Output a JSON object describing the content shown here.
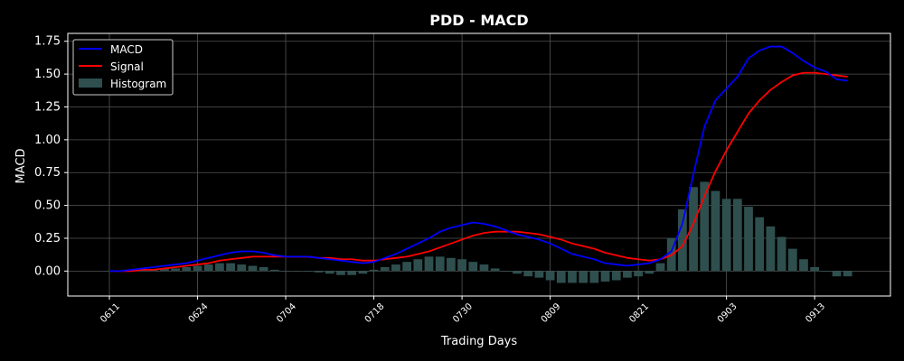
{
  "chart_data": {
    "type": "line",
    "title": "PDD - MACD",
    "xlabel": "Trading Days",
    "ylabel": "MACD",
    "ylim": [
      -0.19,
      1.81
    ],
    "yticks": [
      0.0,
      0.25,
      0.5,
      0.75,
      1.0,
      1.25,
      1.5,
      1.75
    ],
    "ytick_labels": [
      "0.00",
      "0.25",
      "0.50",
      "0.75",
      "1.00",
      "1.25",
      "1.50",
      "1.75"
    ],
    "xtick_indices": [
      0,
      8,
      16,
      24,
      32,
      40,
      48,
      56,
      64
    ],
    "xtick_labels": [
      "0611",
      "0624",
      "0704",
      "0718",
      "0730",
      "0809",
      "0821",
      "0903",
      "0913"
    ],
    "grid": true,
    "legend_position": "top-left",
    "colors": {
      "background": "#000000",
      "macd": "#0000ff",
      "signal": "#ff0000",
      "histogram": "#2f4f4f",
      "grid": "#555555",
      "axes": "#ffffff"
    },
    "series": [
      {
        "name": "MACD",
        "values": [
          0.0,
          0.0,
          0.01,
          0.02,
          0.03,
          0.04,
          0.05,
          0.06,
          0.08,
          0.1,
          0.12,
          0.14,
          0.15,
          0.15,
          0.14,
          0.12,
          0.11,
          0.11,
          0.11,
          0.1,
          0.09,
          0.08,
          0.07,
          0.06,
          0.07,
          0.1,
          0.13,
          0.17,
          0.21,
          0.25,
          0.3,
          0.33,
          0.35,
          0.37,
          0.36,
          0.34,
          0.31,
          0.28,
          0.26,
          0.24,
          0.21,
          0.17,
          0.13,
          0.11,
          0.09,
          0.06,
          0.05,
          0.04,
          0.05,
          0.06,
          0.09,
          0.15,
          0.36,
          0.74,
          1.1,
          1.3,
          1.39,
          1.48,
          1.62,
          1.68,
          1.71,
          1.71,
          1.66,
          1.6,
          1.55,
          1.52,
          1.46,
          1.45
        ]
      },
      {
        "name": "Signal",
        "values": [
          0.0,
          0.0,
          0.0,
          0.01,
          0.01,
          0.02,
          0.03,
          0.04,
          0.05,
          0.06,
          0.08,
          0.09,
          0.1,
          0.11,
          0.11,
          0.11,
          0.11,
          0.11,
          0.11,
          0.1,
          0.1,
          0.09,
          0.09,
          0.08,
          0.08,
          0.09,
          0.1,
          0.11,
          0.13,
          0.15,
          0.18,
          0.21,
          0.24,
          0.27,
          0.29,
          0.3,
          0.3,
          0.3,
          0.29,
          0.28,
          0.26,
          0.24,
          0.21,
          0.19,
          0.17,
          0.14,
          0.12,
          0.1,
          0.09,
          0.08,
          0.09,
          0.12,
          0.19,
          0.36,
          0.57,
          0.76,
          0.92,
          1.06,
          1.2,
          1.3,
          1.38,
          1.44,
          1.49,
          1.51,
          1.51,
          1.5,
          1.49,
          1.48
        ]
      },
      {
        "name": "Histogram",
        "values": [
          0.0,
          0.0,
          0.0,
          0.01,
          0.01,
          0.02,
          0.02,
          0.03,
          0.04,
          0.05,
          0.06,
          0.06,
          0.05,
          0.04,
          0.03,
          0.01,
          0.0,
          0.0,
          0.0,
          -0.01,
          -0.02,
          -0.03,
          -0.03,
          -0.02,
          0.01,
          0.03,
          0.05,
          0.07,
          0.09,
          0.11,
          0.11,
          0.1,
          0.09,
          0.07,
          0.05,
          0.02,
          0.0,
          -0.02,
          -0.04,
          -0.05,
          -0.07,
          -0.09,
          -0.09,
          -0.09,
          -0.09,
          -0.08,
          -0.07,
          -0.05,
          -0.04,
          -0.02,
          0.06,
          0.25,
          0.47,
          0.64,
          0.68,
          0.61,
          0.55,
          0.55,
          0.49,
          0.41,
          0.34,
          0.26,
          0.17,
          0.09,
          0.03,
          0.0,
          -0.04,
          -0.04
        ]
      }
    ]
  }
}
